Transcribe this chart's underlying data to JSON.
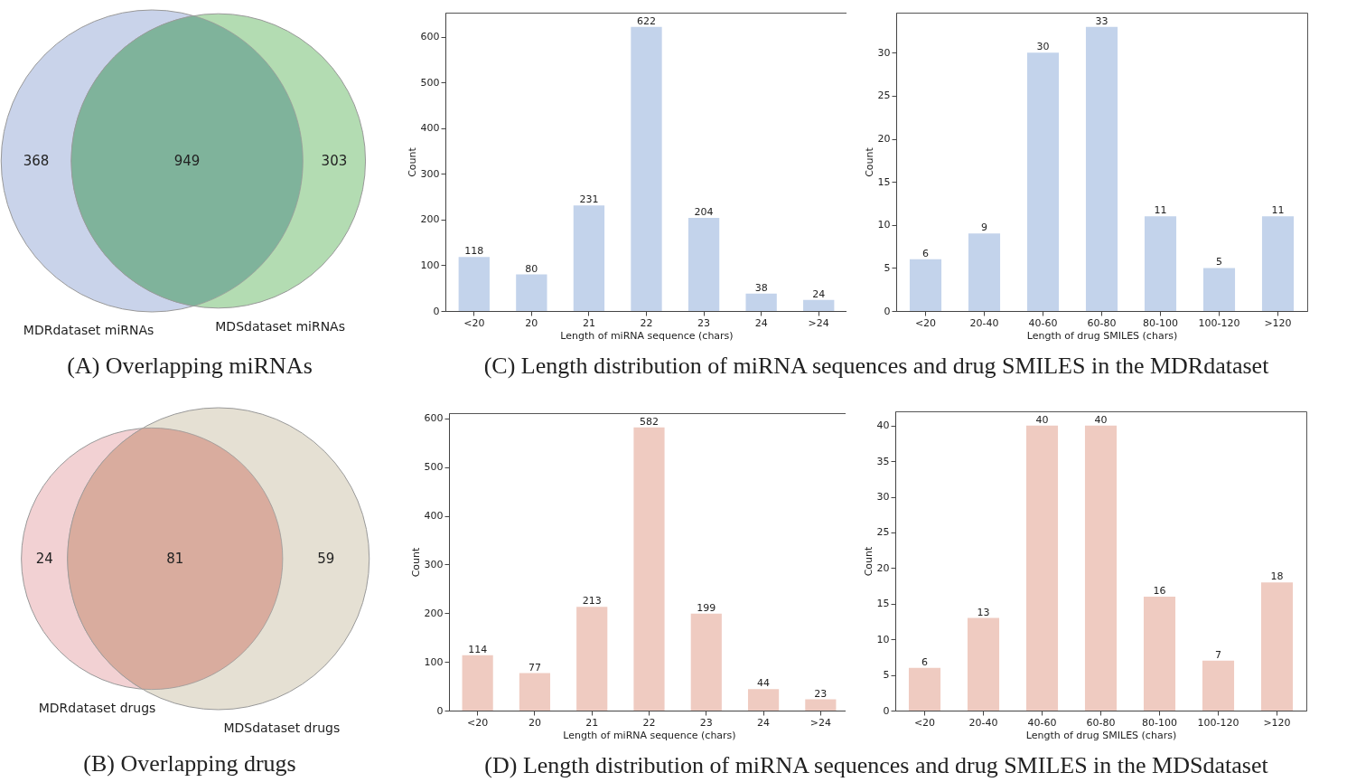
{
  "chart_data": [
    {
      "type": "other",
      "title": "(A) Overlapping miRNAs",
      "categories": [
        null,
        null,
        null
      ],
      "values": [
        368,
        949,
        303
      ],
      "colors": [
        "#c9d3ea",
        "#7fb39b",
        "#b3dcb2"
      ],
      "data_labels": true,
      "annotations": [
        "MDRdataset miRNAs",
        "MDSdataset miRNAs"
      ]
    },
    {
      "type": "bar",
      "title": "(C) Length distribution of miRNA sequences and drug SMILES in the MDRdataset",
      "xlabel": "Length of miRNA sequence (chars)",
      "ylabel": "Count",
      "categories": [
        "<20",
        "20",
        "21",
        "22",
        "23",
        "24",
        ">24"
      ],
      "values": [
        118,
        80,
        231,
        622,
        204,
        38,
        24
      ],
      "color": "#c3d3eb",
      "ylim": [
        0,
        653
      ],
      "yticks": [
        0,
        100,
        200,
        300,
        400,
        500,
        600
      ],
      "data_labels": true,
      "grid": false
    },
    {
      "type": "bar",
      "xlabel": "Length of drug SMILES (chars)",
      "ylabel": "Count",
      "categories": [
        "<20",
        "20-40",
        "40-60",
        "60-80",
        "80-100",
        "100-120",
        ">120"
      ],
      "values": [
        6,
        9,
        30,
        33,
        11,
        5,
        11
      ],
      "color": "#c3d3eb",
      "ylim": [
        0,
        34.65
      ],
      "yticks": [
        0,
        5,
        10,
        15,
        20,
        25,
        30
      ],
      "data_labels": true,
      "grid": false
    },
    {
      "type": "other",
      "title": "(B) Overlapping drugs",
      "categories": [
        null,
        null,
        null
      ],
      "values": [
        24,
        81,
        59
      ],
      "colors": [
        "#f2d1d3",
        "#d9ac9e",
        "#e5e0d3"
      ],
      "data_labels": true,
      "annotations": [
        "MDRdataset drugs",
        "MDSdataset drugs"
      ]
    },
    {
      "type": "bar",
      "title": "(D) Length distribution of miRNA sequences and drug SMILES in the MDSdataset",
      "xlabel": "Length of miRNA sequence (chars)",
      "ylabel": "Count",
      "categories": [
        "<20",
        "20",
        "21",
        "22",
        "23",
        "24",
        ">24"
      ],
      "values": [
        114,
        77,
        213,
        582,
        199,
        44,
        23
      ],
      "color": "#efcbc1",
      "ylim": [
        0,
        611.1
      ],
      "yticks": [
        0,
        100,
        200,
        300,
        400,
        500,
        600
      ],
      "data_labels": true,
      "grid": false
    },
    {
      "type": "bar",
      "xlabel": "Length of drug SMILES (chars)",
      "ylabel": "Count",
      "categories": [
        "<20",
        "20-40",
        "40-60",
        "60-80",
        "80-100",
        "100-120",
        ">120"
      ],
      "values": [
        6,
        13,
        40,
        40,
        16,
        7,
        18
      ],
      "color": "#efcbc1",
      "ylim": [
        0,
        42
      ],
      "yticks": [
        0,
        5,
        10,
        15,
        20,
        25,
        30,
        35,
        40
      ],
      "data_labels": true,
      "grid": false
    }
  ]
}
